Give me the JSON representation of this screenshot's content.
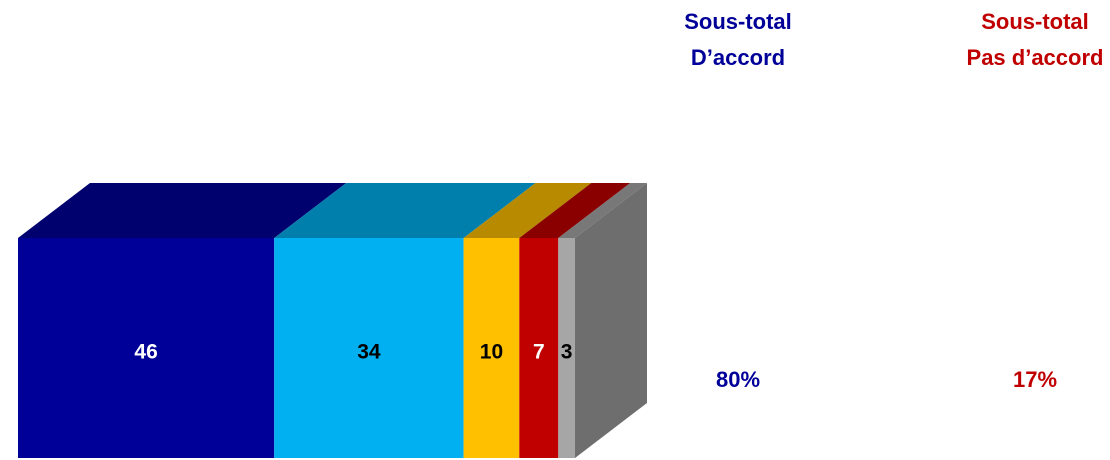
{
  "chart_data": {
    "type": "stacked_bar3d",
    "xlim": [
      0,
      100
    ],
    "series": [
      {
        "color": "#000099",
        "label_color": "#ffffff",
        "values": [
          46
        ]
      },
      {
        "color": "#00b0f0",
        "label_color": "#000000",
        "values": [
          34
        ]
      },
      {
        "color": "#ffc000",
        "label_color": "#000000",
        "values": [
          10
        ]
      },
      {
        "color": "#c00000",
        "label_color": "#ffffff",
        "values": [
          7
        ]
      },
      {
        "color": "#a6a6a6",
        "label_color": "#000000",
        "values": [
          3
        ]
      }
    ],
    "subtotals": {
      "labels": [
        [
          "Sous-total",
          "D’accord"
        ],
        [
          "Sous-total",
          "Pas d’accord"
        ]
      ],
      "values": [
        80,
        17
      ],
      "value_labels": [
        "80%",
        "17%"
      ],
      "colors": [
        "#000099",
        "#c00000"
      ]
    }
  }
}
